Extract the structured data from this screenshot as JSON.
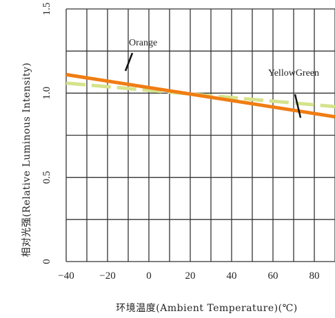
{
  "chart_data": {
    "type": "line",
    "title": "",
    "xlabel": "环境温度(Ambient Temperature)(℃)",
    "ylabel": "相对光强(Relative Luminous Intensity)",
    "xlim": [
      -40,
      90
    ],
    "ylim": [
      0,
      1.5
    ],
    "x_ticks": [
      -40,
      -20,
      0,
      20,
      40,
      60,
      80
    ],
    "x_tick_labels": [
      "−40",
      "−20",
      "0",
      "20",
      "40",
      "60",
      "80"
    ],
    "y_ticks": [
      0,
      0.5,
      1.0,
      1.5
    ],
    "y_tick_labels": [
      "0",
      "0.5",
      "1.0",
      "1.5"
    ],
    "grid": true,
    "series": [
      {
        "name": "Orange",
        "style": "solid",
        "color": "#f07d14",
        "x": [
          -40,
          90
        ],
        "y": [
          1.11,
          0.86
        ]
      },
      {
        "name": "YellowGreen",
        "style": "dashed",
        "color": "#d6e38c",
        "x": [
          -40,
          90
        ],
        "y": [
          1.06,
          0.92
        ]
      }
    ],
    "annotations": [
      {
        "text": "Orange",
        "series": "Orange"
      },
      {
        "text": "YellowGreen",
        "series": "YellowGreen"
      }
    ]
  }
}
